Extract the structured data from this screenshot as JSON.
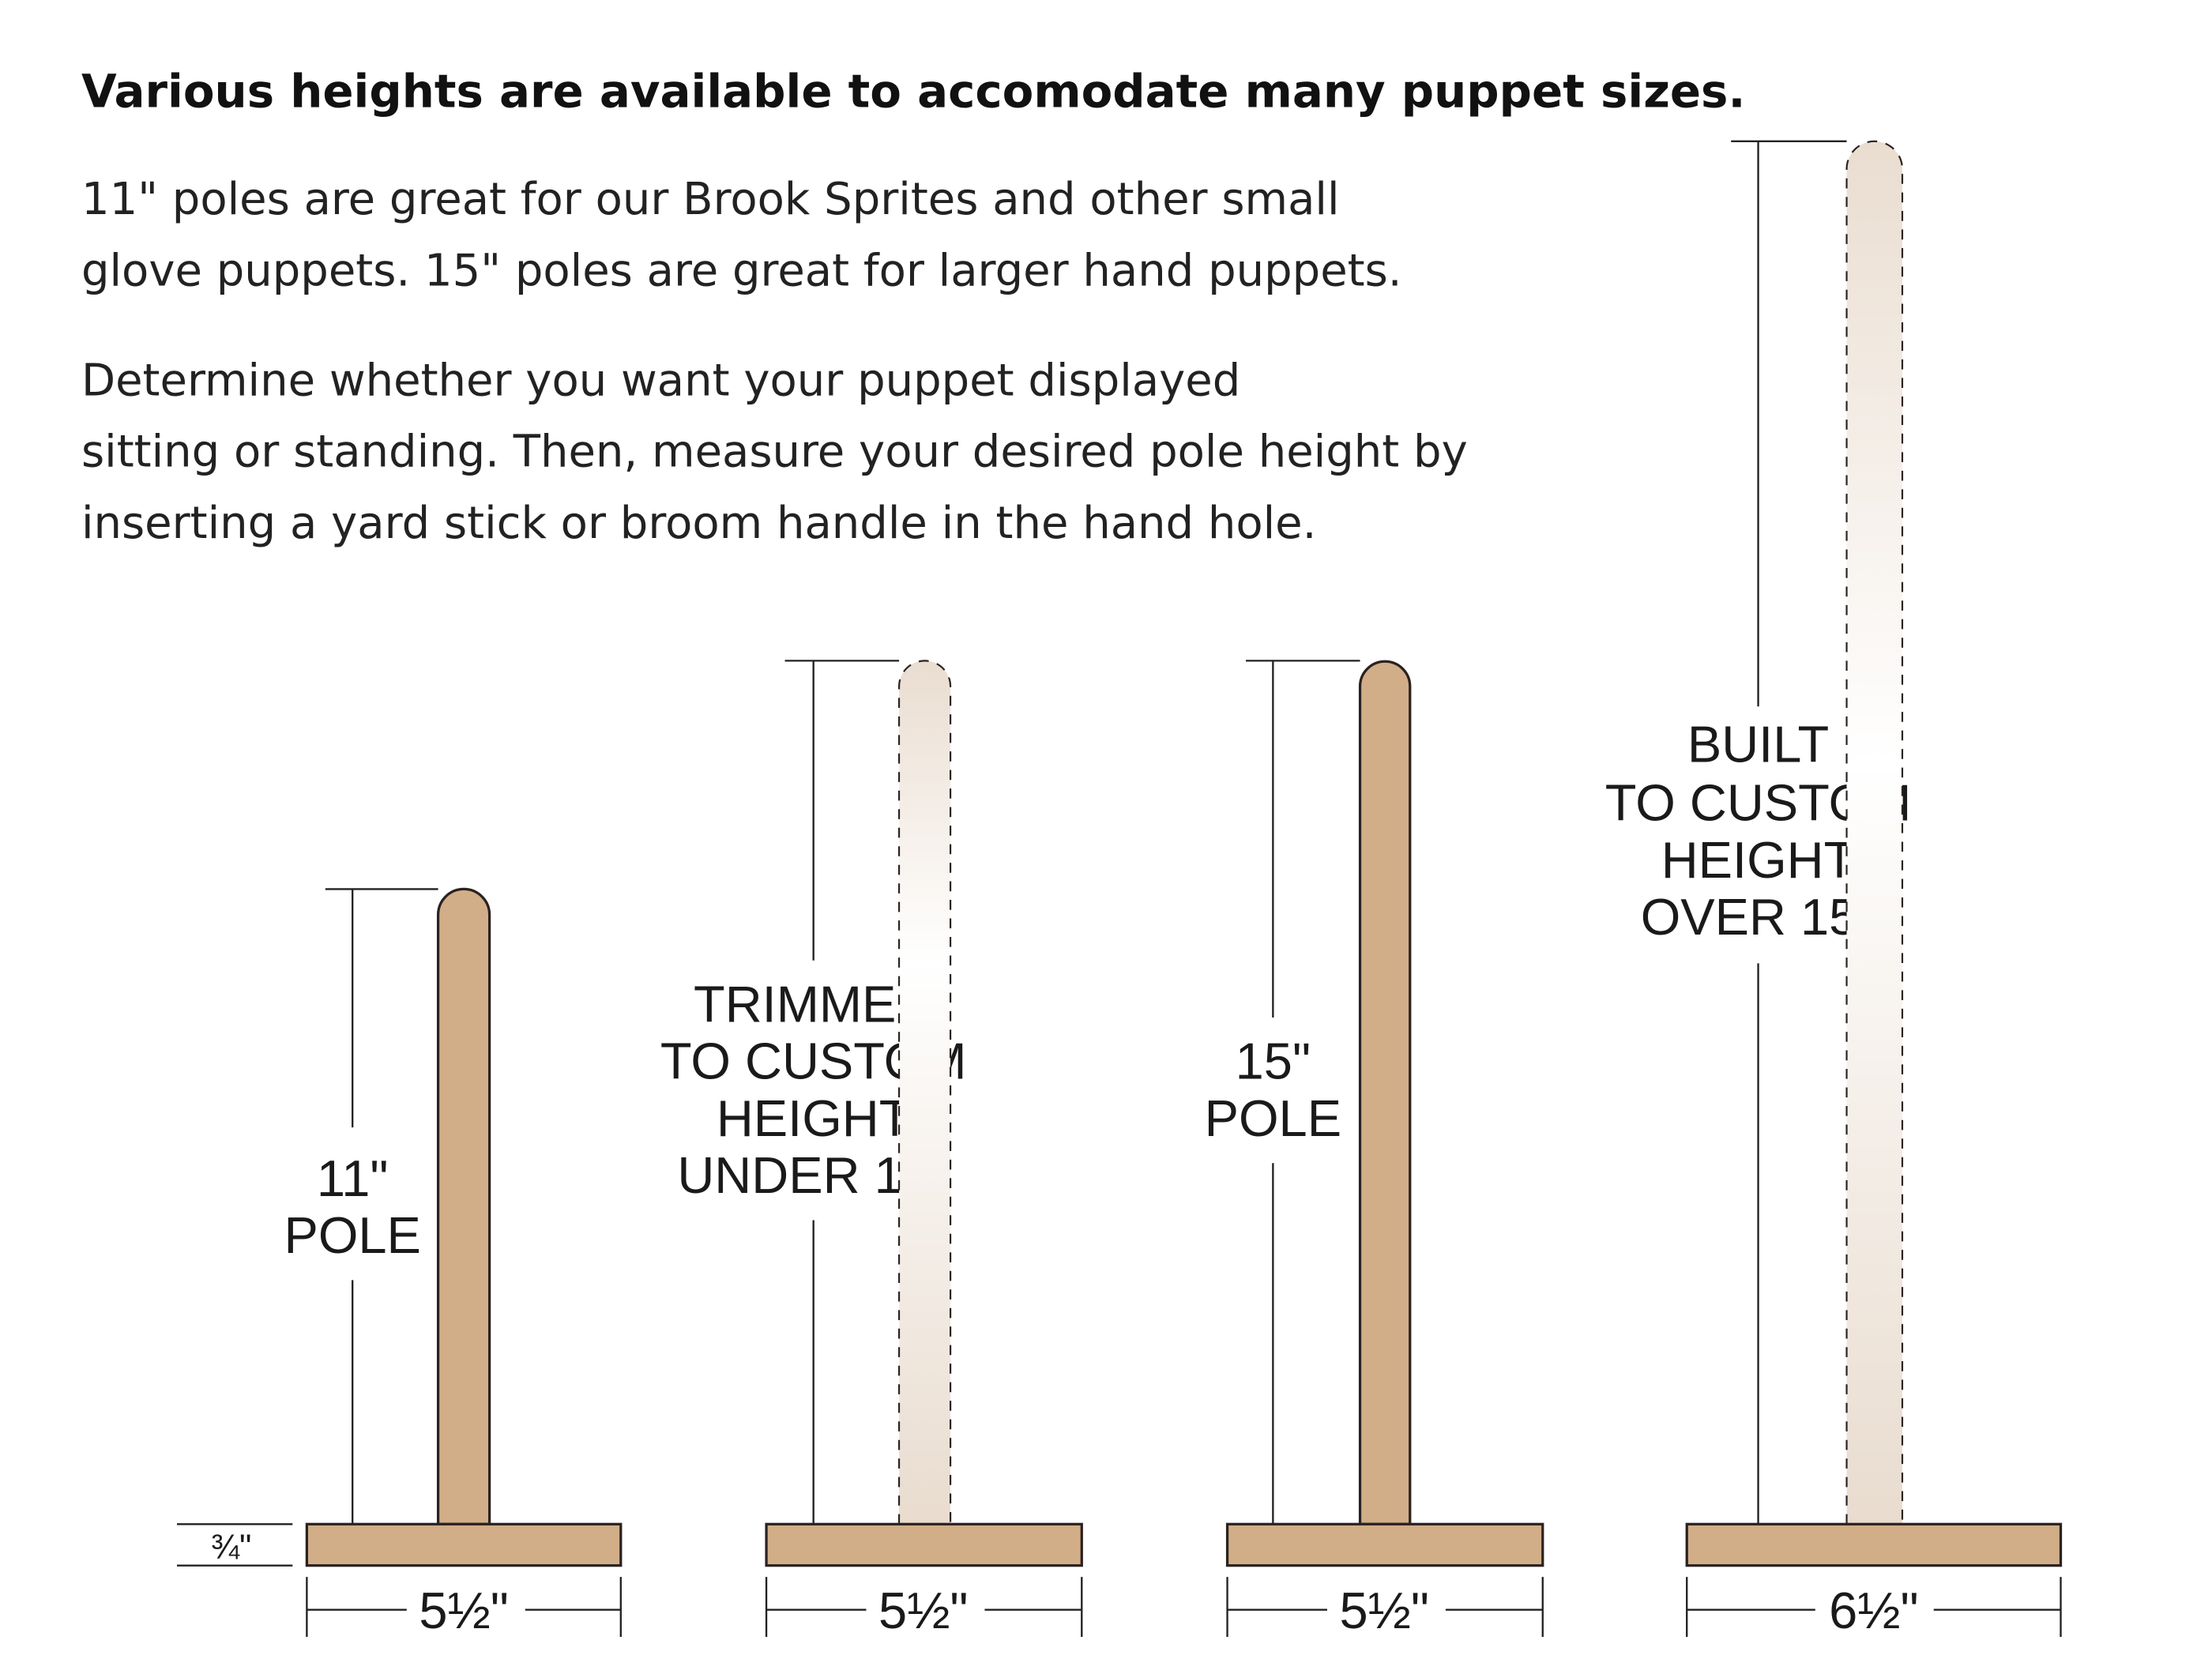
{
  "heading": "Various heights are available to accomodate many puppet sizes.",
  "paragraph1": [
    "11\" poles are great for our Brook Sprites and other small",
    "glove puppets. 15\" poles are great for larger hand puppets."
  ],
  "paragraph2": [
    "Determine whether you want your puppet displayed",
    "sitting or standing. Then, measure your desired pole height by",
    "inserting a yard stick or broom handle in the hand hole."
  ],
  "colors": {
    "wood": "#d1ae88",
    "ghost_wood": "#eaddd0",
    "outline": "#2a2220"
  },
  "base_thickness_label": "¾\"",
  "stands": [
    {
      "height_label": [
        "11\"",
        "POLE"
      ],
      "base_width_label": "5½\"",
      "pole_style": "solid"
    },
    {
      "height_label": [
        "TRIMMED",
        "TO CUSTOM",
        "HEIGHT",
        "UNDER 15\""
      ],
      "base_width_label": "5½\"",
      "pole_style": "dashed-faded"
    },
    {
      "height_label": [
        "15\"",
        "POLE"
      ],
      "base_width_label": "5½\"",
      "pole_style": "solid"
    },
    {
      "height_label": [
        "BUILT",
        "TO CUSTOM",
        "HEIGHT",
        "OVER 15\""
      ],
      "base_width_label": "6½\"",
      "pole_style": "dashed-faded"
    }
  ]
}
